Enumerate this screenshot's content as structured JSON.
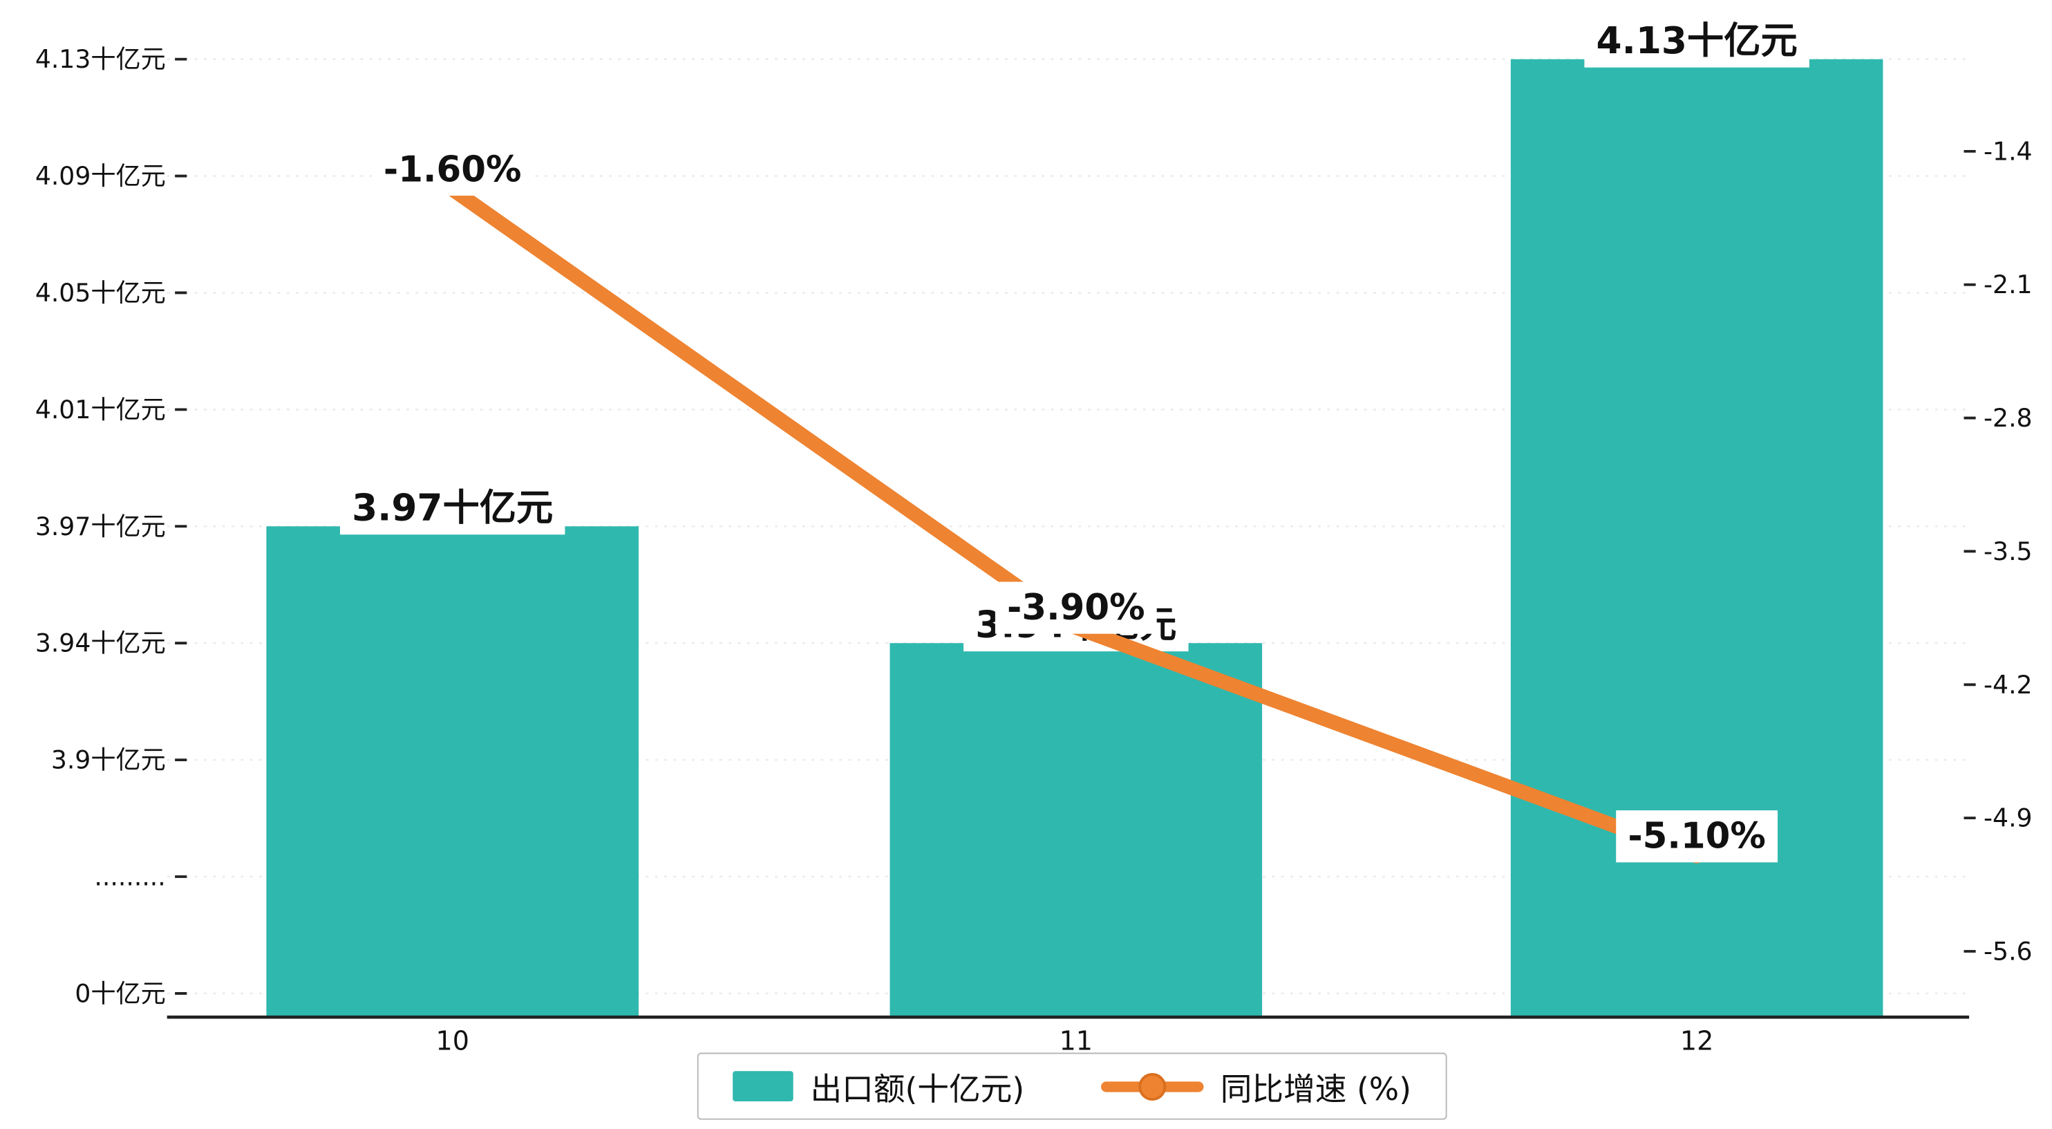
{
  "colors": {
    "bar": "#2FB8AE",
    "line": "#EE8331",
    "line_dark": "#D96F1F",
    "axis": "#222222",
    "text": "#111111",
    "grid": "#ececec",
    "label_bg": "#ffffff"
  },
  "chart_data": {
    "type": "combo",
    "title": "",
    "categories": [
      "10",
      "11",
      "12"
    ],
    "series": [
      {
        "name": "出口额(十亿元)",
        "type": "bar",
        "axis": "left",
        "values": [
          3.97,
          3.94,
          4.13
        ],
        "labels": [
          "3.97十亿元",
          "3.94十亿元",
          "4.13十亿元"
        ],
        "color": "#2FB8AE"
      },
      {
        "name": "同比增速 (%)",
        "type": "line",
        "axis": "right",
        "values": [
          -1.6,
          -3.9,
          -5.1
        ],
        "labels": [
          "-1.60%",
          "-3.90%",
          "-5.10%"
        ],
        "color": "#EE8331"
      }
    ],
    "left_axis": {
      "broken": true,
      "tick_labels": [
        "4.13十亿元",
        "4.09十亿元",
        "4.05十亿元",
        "4.01十亿元",
        "3.97十亿元",
        "3.94十亿元",
        "3.9十亿元",
        ".........",
        "0十亿元"
      ],
      "tick_values": [
        4.13,
        4.09,
        4.05,
        4.01,
        3.97,
        3.94,
        3.9,
        null,
        0
      ]
    },
    "right_axis": {
      "tick_labels": [
        "-1.4",
        "-2.1",
        "-2.8",
        "-3.5",
        "-4.2",
        "-4.9",
        "-5.6"
      ],
      "tick_values": [
        -1.4,
        -2.1,
        -2.8,
        -3.5,
        -4.2,
        -4.9,
        -5.6
      ],
      "range": [
        -5.6,
        -1.4
      ]
    },
    "grid": true,
    "legend_position": "bottom-center",
    "legend": [
      {
        "label": "出口额(十亿元)",
        "marker": "bar-swatch",
        "color": "#2FB8AE"
      },
      {
        "label": "同比增速 (%)",
        "marker": "line-dot",
        "color": "#EE8331"
      }
    ]
  }
}
